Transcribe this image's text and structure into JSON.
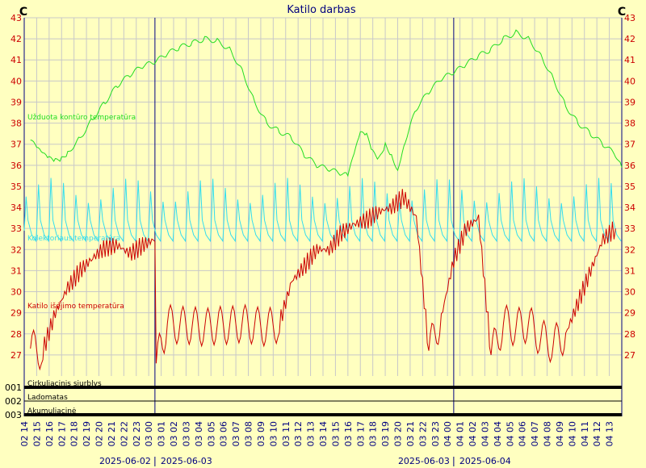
{
  "chart_data": {
    "type": "line",
    "title": "Katilo darbas",
    "y_unit_left": "C",
    "y_unit_right": "C",
    "ylim": [
      26,
      43
    ],
    "y_ticks": [
      27,
      28,
      29,
      30,
      31,
      32,
      33,
      34,
      35,
      36,
      37,
      38,
      39,
      40,
      41,
      42,
      43
    ],
    "grid": true,
    "x_ticks": [
      "02 14",
      "02 15",
      "02 16",
      "02 17",
      "02 18",
      "02 19",
      "02 20",
      "02 21",
      "02 22",
      "02 23",
      "03 00",
      "03 01",
      "03 02",
      "03 03",
      "03 04",
      "03 05",
      "03 06",
      "03 07",
      "03 08",
      "03 09",
      "03 10",
      "03 11",
      "03 12",
      "03 13",
      "03 14",
      "03 15",
      "03 16",
      "03 17",
      "03 18",
      "03 19",
      "03 20",
      "03 21",
      "03 22",
      "03 23",
      "04 00",
      "04 01",
      "04 02",
      "04 03",
      "04 04",
      "04 05",
      "04 06",
      "04 07",
      "04 08",
      "04 09",
      "04 10",
      "04 11",
      "04 12",
      "04 13"
    ],
    "date_labels": [
      {
        "text": "2025-06-02",
        "at_tick": "03 00",
        "side": "left"
      },
      {
        "text": "2025-06-03",
        "at_tick": "03 00",
        "side": "right"
      },
      {
        "text": "2025-06-03",
        "at_tick": "04 00",
        "side": "left"
      },
      {
        "text": "2025-06-04",
        "at_tick": "04 00",
        "side": "right"
      }
    ],
    "day_separators": [
      "03 00",
      "04 00"
    ],
    "series": [
      {
        "name": "Užduota kontūro temperatūra",
        "color": "#22dd22",
        "style": "smooth",
        "points": [
          [
            0,
            37.2
          ],
          [
            0.5,
            36.8
          ],
          [
            1,
            36.5
          ],
          [
            1.5,
            36.3
          ],
          [
            2,
            36.2
          ],
          [
            2.5,
            36.3
          ],
          [
            3,
            36.6
          ],
          [
            4,
            37.3
          ],
          [
            5,
            38.2
          ],
          [
            6,
            39
          ],
          [
            7,
            39.8
          ],
          [
            8,
            40.3
          ],
          [
            9,
            40.7
          ],
          [
            10,
            40.9
          ],
          [
            11,
            41.3
          ],
          [
            12,
            41.6
          ],
          [
            13,
            41.8
          ],
          [
            14,
            42
          ],
          [
            15,
            41.9
          ],
          [
            16,
            41.5
          ],
          [
            17,
            40.5
          ],
          [
            18,
            39
          ],
          [
            19,
            38
          ],
          [
            20,
            37.6
          ],
          [
            21,
            37.3
          ],
          [
            22,
            36.5
          ],
          [
            23,
            36
          ],
          [
            24,
            35.8
          ],
          [
            25,
            35.6
          ],
          [
            25.5,
            35.5
          ],
          [
            26,
            36.5
          ],
          [
            26.5,
            37.5
          ],
          [
            27,
            37.4
          ],
          [
            27.5,
            36.6
          ],
          [
            28,
            36.3
          ],
          [
            28.5,
            37
          ],
          [
            29,
            36.5
          ],
          [
            29.5,
            35.8
          ],
          [
            30,
            37
          ],
          [
            31,
            38.7
          ],
          [
            32,
            39.5
          ],
          [
            33,
            40.1
          ],
          [
            34,
            40.4
          ],
          [
            35,
            40.8
          ],
          [
            36,
            41.2
          ],
          [
            37,
            41.5
          ],
          [
            38,
            42
          ],
          [
            39,
            42.3
          ],
          [
            40,
            42
          ],
          [
            41,
            41.2
          ],
          [
            42,
            40.1
          ],
          [
            43,
            38.8
          ],
          [
            44,
            38
          ],
          [
            45,
            37.5
          ],
          [
            46,
            37
          ],
          [
            47,
            36.5
          ],
          [
            47.5,
            35.9
          ]
        ]
      },
      {
        "name": "Kolektoriaus temperatūra",
        "color": "#33ddee",
        "style": "spiky",
        "base": 32.6,
        "spike": 34.8,
        "spike_period_hours": 1
      },
      {
        "name": "Katilo išėjimo temperatūra",
        "color": "#cc0000",
        "style": "cycling",
        "points": [
          [
            0,
            27.3
          ],
          [
            1,
            27.2
          ],
          [
            2,
            29
          ],
          [
            3,
            30.2
          ],
          [
            4,
            31
          ],
          [
            5,
            31.6
          ],
          [
            6,
            32.1
          ],
          [
            7,
            32.2
          ],
          [
            8,
            31.8
          ],
          [
            9,
            32.2
          ],
          [
            10,
            32.5
          ],
          [
            10.1,
            26.6
          ],
          [
            11,
            28.5
          ],
          [
            12,
            28.4
          ],
          [
            13,
            28.4
          ],
          [
            14,
            28.3
          ],
          [
            15,
            28.4
          ],
          [
            16,
            28.4
          ],
          [
            17,
            28.5
          ],
          [
            18,
            28.4
          ],
          [
            19,
            28.3
          ],
          [
            20,
            28.5
          ],
          [
            21,
            30.5
          ],
          [
            22,
            31.2
          ],
          [
            23,
            32
          ],
          [
            24,
            32
          ],
          [
            25,
            32.8
          ],
          [
            26,
            33.2
          ],
          [
            27,
            33.4
          ],
          [
            28,
            33.8
          ],
          [
            29,
            34
          ],
          [
            30,
            34.5
          ],
          [
            31,
            33.5
          ],
          [
            32,
            27.2
          ],
          [
            33,
            28.8
          ],
          [
            34,
            31.5
          ],
          [
            35,
            33
          ],
          [
            36,
            33.5
          ],
          [
            37,
            27
          ],
          [
            38,
            28.5
          ],
          [
            39,
            28.3
          ],
          [
            40,
            28.5
          ],
          [
            41,
            27.8
          ],
          [
            42,
            27.5
          ],
          [
            43,
            28
          ],
          [
            44,
            29.5
          ],
          [
            45,
            31
          ],
          [
            46,
            32.5
          ],
          [
            47,
            33
          ]
        ]
      }
    ],
    "legend": [
      {
        "label": "Užduota kontūro temperatūra",
        "color": "#22dd22"
      },
      {
        "label": "Kolektoriaus temperatūra",
        "color": "#33ddee"
      },
      {
        "label": "Katilo išėjimo temperatūra",
        "color": "#cc0000"
      }
    ],
    "status_rows": [
      {
        "code": "001",
        "label": "Cirkuliacinis siurblys"
      },
      {
        "code": "002",
        "label": "Ladomatas"
      },
      {
        "code": "003",
        "label": "Akumuliacinė"
      }
    ],
    "colors": {
      "background": "#ffffc0",
      "grid": "#c8c8c8",
      "axis": "#000080",
      "tick_labels": "#cc0000",
      "title": "#000080",
      "date_labels": "#000080"
    }
  }
}
